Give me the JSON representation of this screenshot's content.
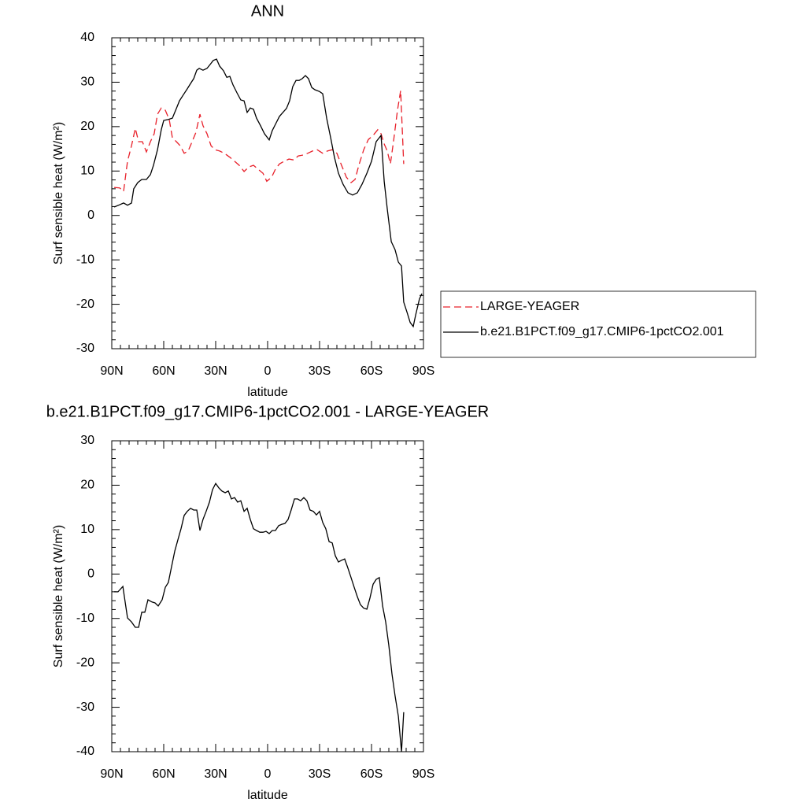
{
  "chart_data": [
    {
      "type": "line",
      "title": "ANN",
      "xlabel": "latitude",
      "ylabel": "Surf sensible heat (W/m²)",
      "xlim": [
        90,
        -90
      ],
      "ylim": [
        -30,
        40
      ],
      "xticks": [
        {
          "value": 90,
          "label": "90N"
        },
        {
          "value": 60,
          "label": "60N"
        },
        {
          "value": 30,
          "label": "30N"
        },
        0,
        {
          "value": -30,
          "label": "30S"
        },
        {
          "value": -60,
          "label": "60S"
        },
        {
          "value": -90,
          "label": "90S"
        }
      ],
      "yticks": [
        -30,
        -20,
        -10,
        0,
        10,
        20,
        30,
        40
      ],
      "legend": "right",
      "series": [
        {
          "name": "LARGE-YEAGER",
          "color": "#e8202a",
          "dash": "dashed",
          "x": [
            88.6,
            85.5,
            83.2,
            80.9,
            78.6,
            76.4,
            74.5,
            72.3,
            70.0,
            67.7,
            65.5,
            63.6,
            61.4,
            59.1,
            56.8,
            55.0,
            52.7,
            50.5,
            48.2,
            45.9,
            43.6,
            41.4,
            39.1,
            37.3,
            35.0,
            32.7,
            30.5,
            27.7,
            25.0,
            21.8,
            19.1,
            16.4,
            13.6,
            10.9,
            8.2,
            5.5,
            2.7,
            0.5,
            -2.3,
            -4.5,
            -6.8,
            -9.5,
            -12.3,
            -15.0,
            -17.7,
            -20.5,
            -23.2,
            -25.9,
            -28.6,
            -31.8,
            -34.5,
            -37.3,
            -40.0,
            -42.7,
            -45.5,
            -48.2,
            -50.5,
            -52.7,
            -55.5,
            -58.2,
            -60.9,
            -63.6,
            -65.5,
            -67.3,
            -69.1,
            -70.9,
            -72.7,
            -75.0,
            -76.8,
            -78.6
          ],
          "values": [
            6.3,
            6.2,
            5.4,
            12.2,
            15.7,
            19.6,
            16.6,
            16.6,
            14.3,
            16.6,
            18.4,
            22.8,
            24.2,
            23.7,
            21.6,
            17.5,
            16.6,
            15.7,
            14.0,
            14.5,
            16.6,
            18.7,
            22.8,
            20.2,
            18.4,
            15.7,
            14.8,
            14.5,
            14.0,
            13.1,
            12.2,
            11.3,
            9.9,
            10.9,
            11.3,
            10.4,
            9.5,
            7.7,
            8.6,
            10.4,
            11.6,
            12.2,
            12.7,
            12.5,
            13.4,
            13.6,
            14.0,
            14.5,
            14.8,
            14.0,
            14.5,
            14.8,
            14.0,
            11.3,
            8.6,
            7.4,
            8.1,
            11.3,
            14.8,
            17.1,
            18.0,
            19.3,
            18.4,
            16.1,
            14.5,
            11.6,
            16.6,
            23.7,
            28.1,
            11.6
          ]
        },
        {
          "name": "b.e21.B1PCT.f09_g17.CMIP6-1pctCO2.001",
          "color": "#000000",
          "dash": "solid",
          "x": [
            88.6,
            85.5,
            83.2,
            80.9,
            78.6,
            77.3,
            75.0,
            72.7,
            70.0,
            67.7,
            65.9,
            63.6,
            61.4,
            60.0,
            57.3,
            55.0,
            52.7,
            50.9,
            48.6,
            46.4,
            44.5,
            42.7,
            40.9,
            39.5,
            37.3,
            35.0,
            33.2,
            31.4,
            29.5,
            27.7,
            25.5,
            23.6,
            21.8,
            20.0,
            17.7,
            15.5,
            13.6,
            11.8,
            10.0,
            8.2,
            6.4,
            4.1,
            1.8,
            -0.9,
            -2.7,
            -4.5,
            -6.8,
            -9.1,
            -10.9,
            -12.7,
            -14.5,
            -16.4,
            -18.2,
            -20.0,
            -21.8,
            -23.6,
            -25.5,
            -27.3,
            -30.0,
            -31.8,
            -34.1,
            -36.4,
            -38.6,
            -40.9,
            -43.6,
            -46.4,
            -49.1,
            -51.8,
            -54.5,
            -57.3,
            -60.0,
            -62.7,
            -65.5,
            -67.3,
            -69.1,
            -71.4,
            -73.6,
            -75.5,
            -77.3,
            -78.6,
            -80.5,
            -82.3,
            -84.1,
            -85.5,
            -87.7,
            -89.1
          ],
          "values": [
            1.9,
            2.4,
            2.8,
            2.3,
            2.8,
            6.0,
            7.4,
            8.1,
            8.1,
            9.2,
            11.3,
            14.8,
            19.3,
            21.4,
            21.6,
            21.9,
            24.1,
            25.8,
            27.2,
            28.5,
            29.7,
            30.8,
            32.7,
            33.1,
            32.7,
            33.1,
            34.0,
            34.9,
            35.2,
            33.6,
            32.6,
            31.1,
            31.3,
            29.4,
            27.6,
            26.0,
            25.8,
            23.2,
            24.2,
            23.9,
            21.9,
            20.2,
            18.4,
            17.0,
            19.1,
            20.5,
            22.3,
            23.3,
            24.1,
            25.8,
            29.0,
            30.4,
            30.4,
            30.8,
            31.5,
            30.8,
            28.8,
            28.3,
            27.9,
            27.4,
            21.9,
            17.5,
            13.1,
            9.5,
            7.0,
            5.1,
            4.6,
            5.1,
            7.0,
            9.5,
            12.2,
            16.6,
            18.0,
            7.7,
            1.5,
            -5.9,
            -7.7,
            -10.5,
            -11.4,
            -19.5,
            -21.8,
            -24.1,
            -25.0,
            -22.4,
            -18.8,
            -17.6
          ]
        }
      ]
    },
    {
      "type": "line",
      "title": "b.e21.B1PCT.f09_g17.CMIP6-1pctCO2.001 - LARGE-YEAGER",
      "xlabel": "latitude",
      "ylabel": "Surf sensible heat (W/m²)",
      "xlim": [
        90,
        -90
      ],
      "ylim": [
        -40,
        30
      ],
      "xticks": [
        {
          "value": 90,
          "label": "90N"
        },
        {
          "value": 60,
          "label": "60N"
        },
        {
          "value": 30,
          "label": "30N"
        },
        0,
        {
          "value": -30,
          "label": "30S"
        },
        {
          "value": -60,
          "label": "60S"
        },
        {
          "value": -90,
          "label": "90S"
        }
      ],
      "yticks": [
        -40,
        -30,
        -20,
        -10,
        0,
        10,
        20,
        30
      ],
      "series": [
        {
          "color": "#000000",
          "dash": "solid",
          "x": [
            88.6,
            86.4,
            83.6,
            80.9,
            78.6,
            76.4,
            74.5,
            72.7,
            70.9,
            69.1,
            66.8,
            65.0,
            63.2,
            60.9,
            59.1,
            57.3,
            55.5,
            53.6,
            51.8,
            50.0,
            48.2,
            46.4,
            44.5,
            42.7,
            40.9,
            39.1,
            37.3,
            35.5,
            33.6,
            31.8,
            30.0,
            28.2,
            26.4,
            24.5,
            22.7,
            20.9,
            19.1,
            17.3,
            15.5,
            13.6,
            11.8,
            10.0,
            8.2,
            6.4,
            4.5,
            2.7,
            0.9,
            -0.9,
            -2.7,
            -4.5,
            -6.4,
            -8.2,
            -10.0,
            -11.8,
            -13.6,
            -15.5,
            -17.3,
            -19.1,
            -20.9,
            -22.7,
            -24.5,
            -26.4,
            -28.2,
            -30.0,
            -31.8,
            -33.6,
            -35.5,
            -37.3,
            -39.1,
            -40.9,
            -42.7,
            -44.5,
            -46.4,
            -48.2,
            -50.0,
            -51.8,
            -53.6,
            -55.5,
            -57.3,
            -59.1,
            -60.9,
            -62.7,
            -64.5,
            -66.4,
            -68.2,
            -70.0,
            -71.8,
            -73.6,
            -75.5,
            -77.3,
            -78.6
          ],
          "values": [
            -4.0,
            -4.0,
            -2.8,
            -9.9,
            -10.8,
            -12.0,
            -12.0,
            -8.6,
            -8.6,
            -5.8,
            -6.3,
            -6.5,
            -7.2,
            -5.8,
            -3.0,
            -1.9,
            1.6,
            5.2,
            7.7,
            10.2,
            13.2,
            14.1,
            14.8,
            14.4,
            14.4,
            9.8,
            12.3,
            14.1,
            16.2,
            19.0,
            20.4,
            19.4,
            18.7,
            18.3,
            18.7,
            16.9,
            17.2,
            16.2,
            16.5,
            14.1,
            14.8,
            12.3,
            10.2,
            9.8,
            9.4,
            9.4,
            9.6,
            9.1,
            9.8,
            9.8,
            10.9,
            11.2,
            11.4,
            12.3,
            14.4,
            16.9,
            16.9,
            16.5,
            17.2,
            16.5,
            14.4,
            14.1,
            13.3,
            14.1,
            11.6,
            10.2,
            7.3,
            7.0,
            4.1,
            2.7,
            3.1,
            3.4,
            1.3,
            -0.8,
            -3.0,
            -5.1,
            -6.9,
            -7.7,
            -7.9,
            -5.4,
            -2.3,
            -1.2,
            -0.8,
            -7.2,
            -10.8,
            -16.1,
            -22.5,
            -27.4,
            -32.0,
            -40.0,
            -31.1
          ]
        }
      ]
    }
  ]
}
